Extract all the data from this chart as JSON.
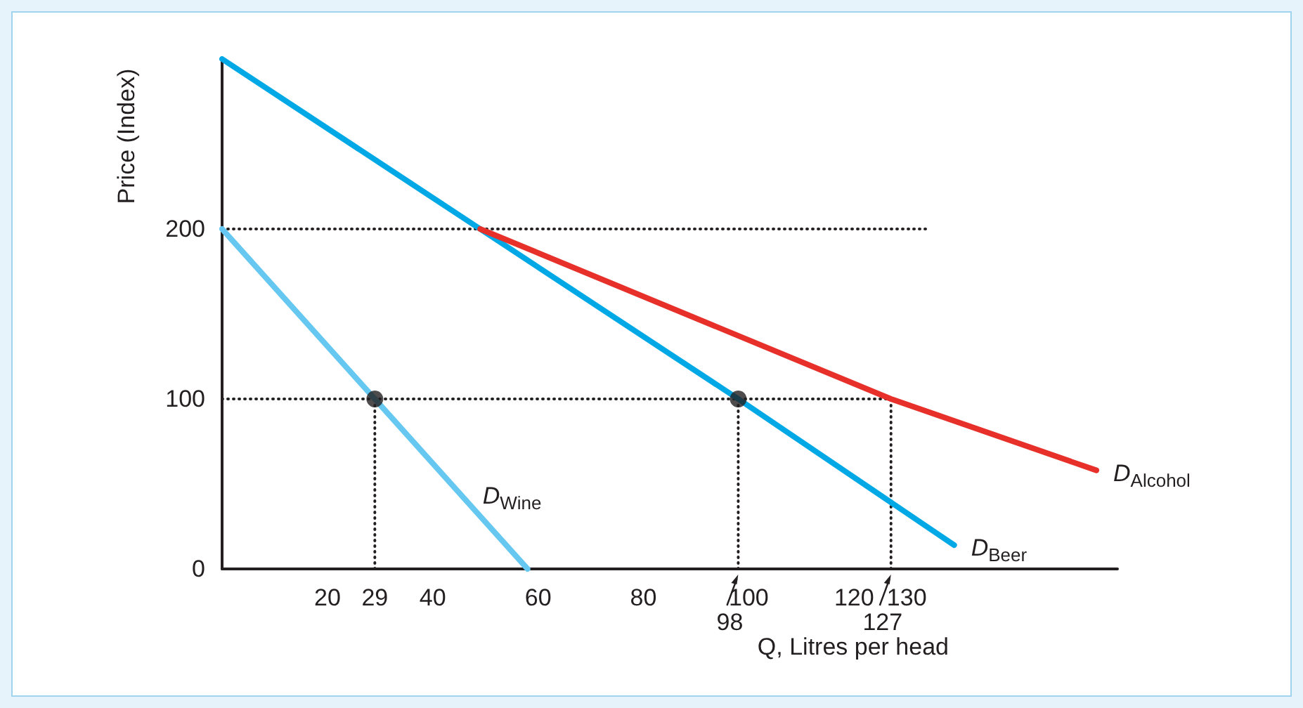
{
  "chart_data": {
    "type": "line",
    "xlabel": "Q, Litres per head",
    "ylabel": "Price (Index)",
    "xlim": [
      0,
      170
    ],
    "ylim": [
      0,
      300
    ],
    "xticks": [
      20,
      29,
      40,
      60,
      80,
      100,
      120,
      130
    ],
    "yticks": [
      0,
      100,
      200
    ],
    "annotations": [
      {
        "text": "98",
        "x": 98,
        "y": 0
      },
      {
        "text": "127",
        "x": 127,
        "y": 0
      }
    ],
    "grid": false,
    "marker": "none",
    "line_style": "solid",
    "series": [
      {
        "name": "D$_{Wine}$",
        "color": "#66c8f0",
        "x": [
          0,
          29,
          58
        ],
        "values": [
          200,
          100,
          0
        ]
      },
      {
        "name": "D$_{Beer}$",
        "color": "#00a9e6",
        "x": [
          0,
          49,
          98,
          139
        ],
        "values": [
          300,
          200,
          100,
          14
        ]
      },
      {
        "name": "D$_{Alcohol}$",
        "color": "#e8302a",
        "x": [
          49,
          127,
          166
        ],
        "values": [
          200,
          100,
          58
        ]
      },
      {
        "type": "line",
        "line_style": "dotted",
        "color": "#231f20",
        "x": [
          0,
          134
        ],
        "values": [
          200,
          200
        ]
      },
      {
        "type": "line",
        "line_style": "dotted",
        "color": "#231f20",
        "x": [
          0,
          127
        ],
        "values": [
          100,
          100
        ]
      },
      {
        "type": "line",
        "line_style": "dotted",
        "color": "#231f20",
        "x": [
          29,
          29
        ],
        "values": [
          0,
          100
        ]
      },
      {
        "type": "line",
        "line_style": "dotted",
        "color": "#231f20",
        "x": [
          98,
          98
        ],
        "values": [
          0,
          100
        ]
      },
      {
        "type": "line",
        "line_style": "dotted",
        "color": "#231f20",
        "x": [
          127,
          127
        ],
        "values": [
          0,
          100
        ]
      },
      {
        "type": "scatter",
        "marker": "circle",
        "color": "#231f20",
        "x": [
          29,
          98
        ],
        "values": [
          100,
          100
        ]
      }
    ]
  }
}
